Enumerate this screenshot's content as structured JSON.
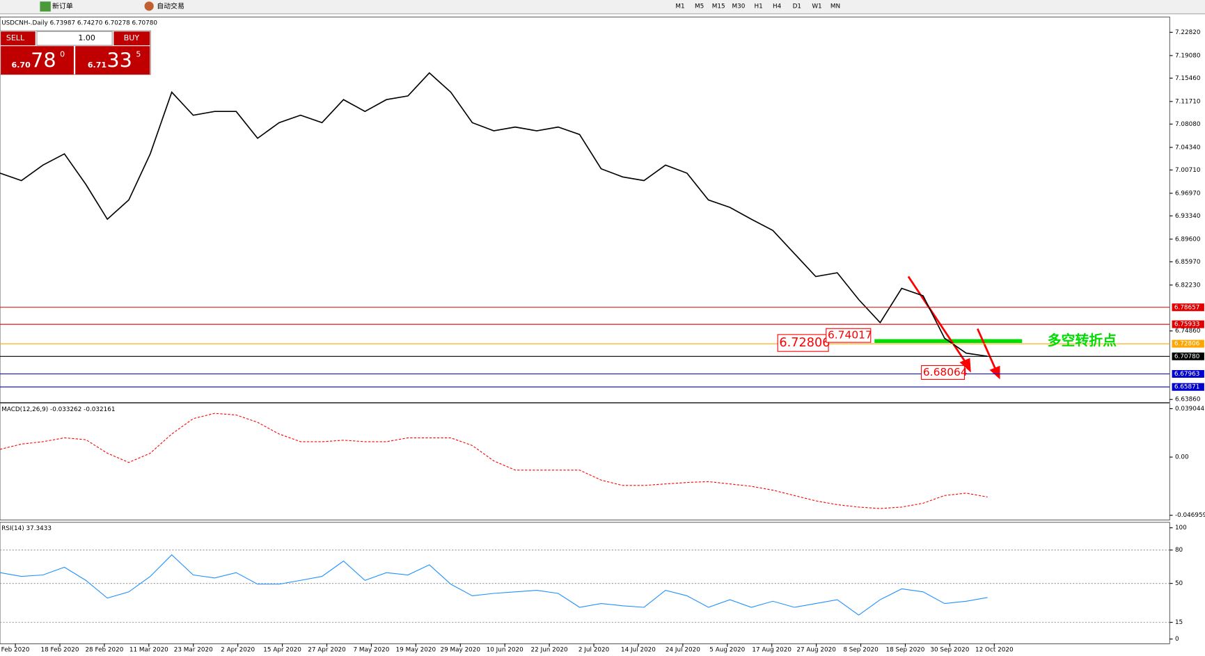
{
  "toolbar": {
    "new_order": "新订单",
    "auto_trading": "自动交易",
    "timeframes": [
      "M1",
      "M5",
      "M15",
      "M30",
      "H1",
      "H4",
      "D1",
      "W1",
      "MN"
    ]
  },
  "trade_panel": {
    "sell": "SELL",
    "buy": "BUY",
    "lots": "1.00",
    "bid": {
      "big": "6.70",
      "main": "78",
      "small": "0"
    },
    "ask": {
      "big": "6.71",
      "main": "33",
      "small": "5"
    }
  },
  "chart_data": [
    {
      "type": "line",
      "title": "USDCNH-.Daily 6.73987 6.74270 6.70278 6.70780",
      "color": "#000000",
      "values": [
        7.002,
        6.99,
        7.015,
        7.033,
        6.984,
        6.928,
        6.959,
        7.033,
        7.132,
        7.095,
        7.101,
        7.101,
        7.058,
        7.083,
        7.095,
        7.083,
        7.12,
        7.101,
        7.12,
        7.126,
        7.163,
        7.132,
        7.083,
        7.07,
        7.076,
        7.07,
        7.076,
        7.064,
        7.009,
        6.996,
        6.99,
        7.015,
        7.002,
        6.959,
        6.947,
        6.928,
        6.91,
        6.873,
        6.836,
        6.842,
        6.799,
        6.762,
        6.817,
        6.805,
        6.737,
        6.713,
        6.708
      ],
      "ylim": [
        6.6337,
        7.2529
      ],
      "yticks": [
        {
          "value": 7.2282,
          "label": "7.22820"
        },
        {
          "value": 7.1908,
          "label": "7.19080"
        },
        {
          "value": 7.1546,
          "label": "7.15460"
        },
        {
          "value": 7.1171,
          "label": "7.11710"
        },
        {
          "value": 7.0808,
          "label": "7.08080"
        },
        {
          "value": 7.0434,
          "label": "7.04340"
        },
        {
          "value": 7.0071,
          "label": "7.00710"
        },
        {
          "value": 6.9697,
          "label": "6.96970"
        },
        {
          "value": 6.9334,
          "label": "6.93340"
        },
        {
          "value": 6.896,
          "label": "6.89600"
        },
        {
          "value": 6.8597,
          "label": "6.85970"
        },
        {
          "value": 6.8223,
          "label": "6.82230"
        },
        {
          "value": 6.7486,
          "label": "6.74860"
        },
        {
          "value": 6.6386,
          "label": "6.63860"
        }
      ],
      "levels": [
        {
          "value": 6.78657,
          "label": "6.78657",
          "color": "#e00000"
        },
        {
          "value": 6.75933,
          "label": "6.75933",
          "color": "#e00000"
        },
        {
          "value": 6.72806,
          "label": "6.72806",
          "color": "#ffa500"
        },
        {
          "value": 6.7078,
          "label": "6.70780",
          "color": "#000000"
        },
        {
          "value": 6.67963,
          "label": "6.67963",
          "color": "#0000cc"
        },
        {
          "value": 6.65871,
          "label": "6.65871",
          "color": "#0000cc"
        }
      ],
      "annotations": [
        6.72806,
        6.74017,
        6.68064
      ],
      "turning_point": "多空转折点",
      "x_labels": [
        "Feb 2020",
        "18 Feb 2020",
        "28 Feb 2020",
        "11 Mar 2020",
        "23 Mar 2020",
        "2 Apr 2020",
        "15 Apr 2020",
        "27 Apr 2020",
        "7 May 2020",
        "19 May 2020",
        "29 May 2020",
        "10 Jun 2020",
        "22 Jun 2020",
        "2 Jul 2020",
        "14 Jul 2020",
        "24 Jul 2020",
        "5 Aug 2020",
        "17 Aug 2020",
        "27 Aug 2020",
        "8 Sep 2020",
        "18 Sep 2020",
        "30 Sep 2020",
        "12 Oct 2020"
      ]
    },
    {
      "type": "line",
      "title": "MACD(12,26,9) -0.033262 -0.032161",
      "color": "#ff0000",
      "values": [
        0.0062,
        0.0105,
        0.0124,
        0.0155,
        0.014,
        0.0031,
        -0.0043,
        0.0031,
        0.0186,
        0.031,
        0.0353,
        0.034,
        0.028,
        0.0186,
        0.0124,
        0.0124,
        0.0136,
        0.0124,
        0.0124,
        0.0155,
        0.0155,
        0.0155,
        0.0093,
        -0.0031,
        -0.0105,
        -0.0105,
        -0.0105,
        -0.0105,
        -0.0186,
        -0.0229,
        -0.0229,
        -0.0217,
        -0.0205,
        -0.0198,
        -0.0217,
        -0.0236,
        -0.0267,
        -0.031,
        -0.0353,
        -0.0384,
        -0.0403,
        -0.0415,
        -0.0403,
        -0.0372,
        -0.031,
        -0.0291,
        -0.0322
      ],
      "ylim": [
        -0.0508,
        0.0434
      ],
      "yticks": [
        0.039044,
        {
          "value": 0,
          "label": "0.00"
        },
        -0.046959
      ]
    },
    {
      "type": "line",
      "title": "RSI(14) 37.3433",
      "color": "#1e90ff",
      "values": [
        59.7,
        56.3,
        57.6,
        64.6,
        52.8,
        36.8,
        42.4,
        56.3,
        75.7,
        57.6,
        54.9,
        59.7,
        49.3,
        49.3,
        52.8,
        56.3,
        70.1,
        52.8,
        59.7,
        57.6,
        66.7,
        49.3,
        38.9,
        41.0,
        42.4,
        43.8,
        41.0,
        28.5,
        31.9,
        29.9,
        28.5,
        43.8,
        38.9,
        28.5,
        35.4,
        28.5,
        34.0,
        28.5,
        31.9,
        35.4,
        21.5,
        35.4,
        45.1,
        42.4,
        31.9,
        34.0,
        37.3
      ],
      "ylim": [
        -4.2,
        104.9
      ],
      "yticks": [
        100,
        80,
        50,
        15,
        0
      ]
    }
  ]
}
